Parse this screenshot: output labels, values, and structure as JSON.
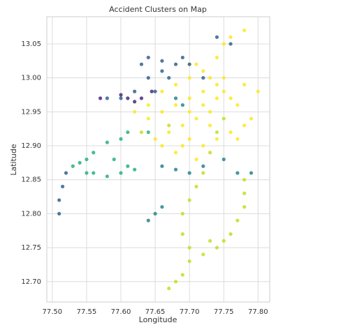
{
  "chart_data": {
    "type": "scatter",
    "title": "Accident Clusters on Map",
    "x_label": "Longitude",
    "y_label": "Latitude",
    "xlim": [
      77.492,
      77.817
    ],
    "ylim": [
      12.67,
      13.09
    ],
    "xticks": [
      {
        "value": 77.5,
        "label": "77.50"
      },
      {
        "value": 77.55,
        "label": "77.55"
      },
      {
        "value": 77.6,
        "label": "77.60"
      },
      {
        "value": 77.65,
        "label": "77.65"
      },
      {
        "value": 77.7,
        "label": "77.70"
      },
      {
        "value": 77.75,
        "label": "77.75"
      },
      {
        "value": 77.8,
        "label": "77.80"
      }
    ],
    "yticks": [
      {
        "value": 12.7,
        "label": "12.70"
      },
      12.75,
      {
        "value": 12.8,
        "label": "12.80"
      },
      12.85,
      {
        "value": 12.9,
        "label": "12.90"
      },
      12.95,
      {
        "value": 13.0,
        "label": "13.00"
      },
      13.05
    ],
    "grid": true,
    "series": [
      {
        "color": "#fde725",
        "x": [
          77.66,
          77.68,
          77.7,
          77.72,
          77.71,
          77.7,
          77.72,
          77.74,
          77.75,
          77.76,
          77.73,
          77.71,
          77.69,
          77.67,
          77.66,
          77.68,
          77.7,
          77.72,
          77.74,
          77.76,
          77.78,
          77.79,
          77.77,
          77.75,
          77.74,
          77.75,
          77.76,
          77.78,
          77.74,
          77.72,
          77.7,
          77.68,
          77.64,
          77.62,
          77.64,
          77.66,
          77.8,
          77.78,
          77.73,
          77.71,
          77.69,
          77.77,
          77.65,
          77.73,
          77.7
        ],
        "y": [
          12.98,
          12.99,
          13.0,
          13.01,
          13.02,
          12.97,
          12.96,
          12.97,
          12.98,
          12.97,
          12.95,
          12.94,
          12.93,
          12.92,
          12.9,
          12.89,
          12.91,
          12.9,
          12.91,
          12.92,
          12.93,
          12.94,
          12.96,
          13.0,
          13.03,
          13.05,
          13.06,
          13.07,
          12.99,
          12.98,
          12.95,
          12.96,
          12.96,
          12.95,
          12.94,
          12.95,
          12.98,
          12.99,
          12.93,
          12.88,
          12.9,
          12.91,
          12.91,
          13.0,
          13.02
        ]
      },
      {
        "color": "#c0df25",
        "x": [
          77.75,
          77.74,
          77.73,
          77.72,
          77.71,
          77.7,
          77.69,
          77.69,
          77.7,
          77.7,
          77.69,
          77.68,
          77.67,
          77.72,
          77.73,
          77.78,
          77.78,
          77.78,
          77.77,
          77.76,
          77.75,
          77.74,
          77.67,
          77.63
        ],
        "y": [
          12.94,
          12.92,
          12.89,
          12.86,
          12.84,
          12.82,
          12.8,
          12.77,
          12.75,
          12.73,
          12.71,
          12.7,
          12.69,
          12.74,
          12.76,
          12.85,
          12.83,
          12.81,
          12.79,
          12.77,
          12.76,
          12.75,
          12.93,
          12.92
        ]
      },
      {
        "color": "#2ab07f",
        "x": [
          77.64,
          77.61,
          77.6,
          77.58,
          77.56,
          77.55,
          77.54,
          77.53,
          77.55,
          77.56,
          77.58,
          77.6,
          77.62,
          77.59,
          77.61
        ],
        "y": [
          12.92,
          12.92,
          12.91,
          12.905,
          12.89,
          12.88,
          12.875,
          12.87,
          12.86,
          12.86,
          12.855,
          12.86,
          12.865,
          12.88,
          12.87
        ]
      },
      {
        "color": "#25858e",
        "x": [
          77.66,
          77.68,
          77.7,
          77.72,
          77.75,
          77.77,
          77.79,
          77.66,
          77.65,
          77.64,
          77.69,
          77.68
        ],
        "y": [
          12.87,
          12.865,
          12.86,
          12.87,
          12.88,
          12.86,
          12.86,
          12.81,
          12.8,
          12.79,
          12.96,
          12.97
        ]
      },
      {
        "color": "#33638d",
        "x": [
          77.63,
          77.64,
          77.66,
          77.68,
          77.7,
          77.66,
          77.64,
          77.67,
          77.69,
          77.62,
          77.65,
          77.52,
          77.515,
          77.51,
          77.51,
          77.74,
          77.76,
          77.72,
          77.6,
          77.58
        ],
        "y": [
          13.02,
          13.03,
          13.025,
          13.02,
          13.02,
          13.01,
          13.0,
          13.0,
          13.03,
          12.98,
          12.98,
          12.86,
          12.84,
          12.82,
          12.8,
          13.06,
          13.05,
          13.0,
          12.97,
          12.97
        ]
      },
      {
        "color": "#472c7a",
        "x": [
          77.6,
          77.61,
          77.62,
          77.63,
          77.645,
          77.57
        ],
        "y": [
          12.975,
          12.97,
          12.965,
          12.97,
          12.98,
          12.97
        ]
      }
    ]
  }
}
